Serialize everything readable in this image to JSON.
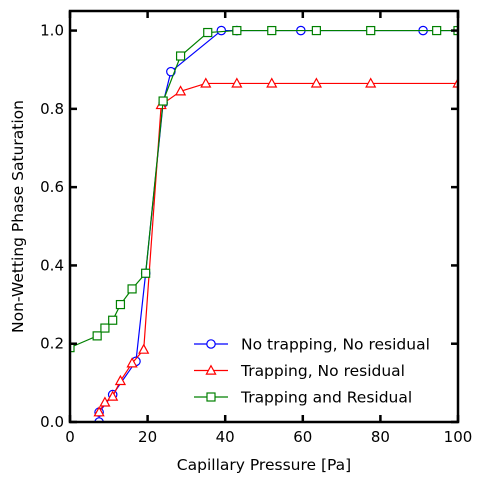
{
  "chart_data": {
    "type": "line",
    "title": "",
    "xlabel": "Capillary Pressure [Pa]",
    "ylabel": "Non-Wetting Phase Saturation",
    "xlim": [
      0,
      100
    ],
    "ylim": [
      0,
      1.05
    ],
    "xticks": [
      0,
      20,
      40,
      60,
      80,
      100
    ],
    "yticks": [
      0.0,
      0.2,
      0.4,
      0.6,
      0.8,
      1.0
    ],
    "xtick_labels": [
      "0",
      "20",
      "40",
      "60",
      "80",
      "100"
    ],
    "ytick_labels": [
      "0.0",
      "0.2",
      "0.4",
      "0.6",
      "0.8",
      "1.0"
    ],
    "grid": false,
    "legend_position": "lower-right",
    "series": [
      {
        "name": "No trapping, No residual",
        "color": "#0000ff",
        "marker": "circle",
        "x": [
          7.5,
          7.5,
          11,
          17,
          19.5,
          24,
          26,
          39,
          43,
          59.5,
          91,
          100
        ],
        "y": [
          0.0,
          0.025,
          0.07,
          0.155,
          0.38,
          0.815,
          0.895,
          1.0,
          1.0,
          1.0,
          1.0,
          1.0
        ]
      },
      {
        "name": "Trapping, No residual",
        "color": "#ff0000",
        "marker": "triangle",
        "x": [
          7.5,
          9,
          11,
          13,
          16,
          19,
          23.5,
          28.5,
          35,
          43,
          52,
          63.5,
          77.5,
          100
        ],
        "y": [
          0.025,
          0.05,
          0.065,
          0.105,
          0.15,
          0.185,
          0.81,
          0.845,
          0.865,
          0.865,
          0.865,
          0.865,
          0.865,
          0.865
        ]
      },
      {
        "name": "Trapping and Residual",
        "color": "#008000",
        "marker": "square",
        "x": [
          0,
          7,
          9,
          11,
          13,
          16,
          19.5,
          24,
          28.5,
          35.5,
          43,
          52,
          63.5,
          77.5,
          94.5,
          100
        ],
        "y": [
          0.19,
          0.22,
          0.24,
          0.26,
          0.3,
          0.34,
          0.38,
          0.82,
          0.935,
          0.995,
          1.0,
          1.0,
          1.0,
          1.0,
          1.0,
          1.0
        ]
      }
    ]
  }
}
